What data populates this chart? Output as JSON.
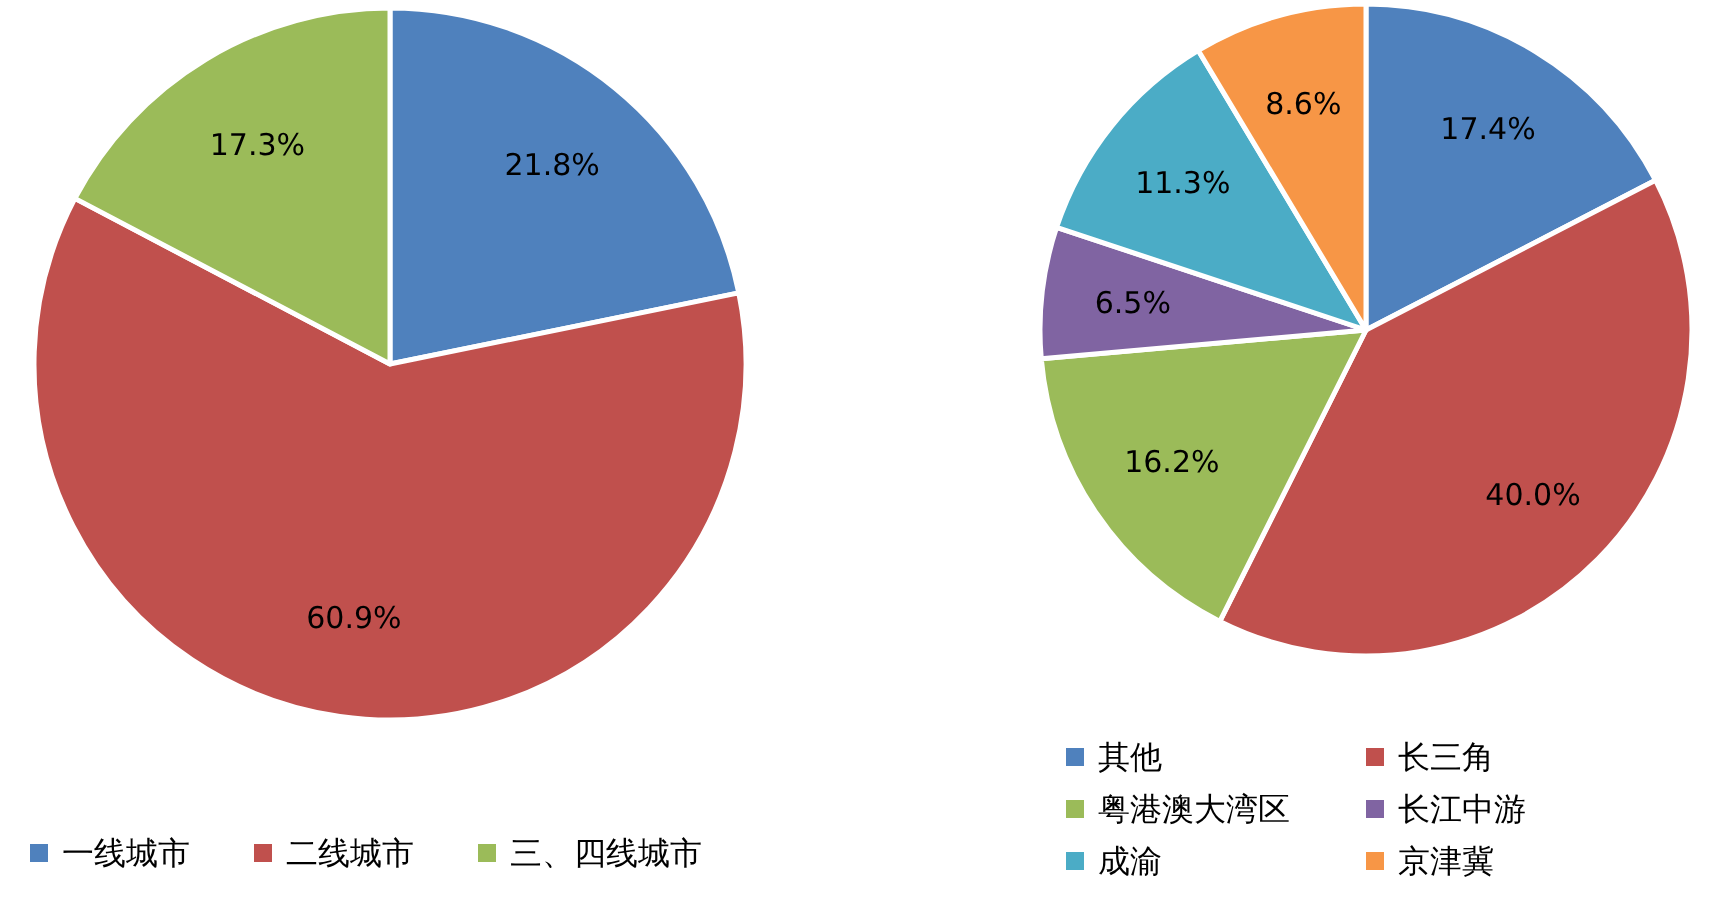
{
  "chart_data": [
    {
      "type": "pie",
      "categories": [
        "一线城市",
        "二线城市",
        "三、四线城市"
      ],
      "values": [
        21.8,
        60.9,
        17.3
      ],
      "colors": [
        "#4f81bd",
        "#c0504d",
        "#9bbb59"
      ],
      "value_labels": [
        "21.8%",
        "60.9%",
        "17.3%"
      ],
      "legend": "bottom"
    },
    {
      "type": "pie",
      "categories": [
        "其他",
        "长三角",
        "粤港澳大湾区",
        "长江中游",
        "成渝",
        "京津冀"
      ],
      "values": [
        17.4,
        40.0,
        16.2,
        6.5,
        11.3,
        8.6
      ],
      "colors": [
        "#4f81bd",
        "#c0504d",
        "#9bbb59",
        "#8064a2",
        "#4bacc6",
        "#f79646"
      ],
      "value_labels": [
        "17.4%",
        "40.0%",
        "16.2%",
        "6.5%",
        "11.3%",
        "8.6%"
      ],
      "legend": "bottom"
    }
  ]
}
